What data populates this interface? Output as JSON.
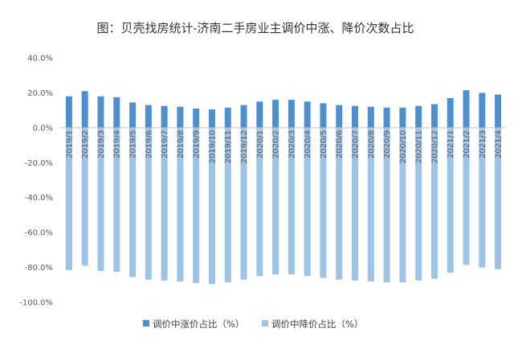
{
  "chart_data": {
    "type": "bar",
    "title": "图：贝壳找房统计-济南二手房业主调价中涨、降价次数占比",
    "categories": [
      "2019/1",
      "2019/2",
      "2019/3",
      "2019/4",
      "2019/5",
      "2019/6",
      "2019/7",
      "2019/8",
      "2019/9",
      "2019/10",
      "2019/11",
      "2019/12",
      "2020/1",
      "2020/2",
      "2020/3",
      "2020/4",
      "2020/5",
      "2020/6",
      "2020/7",
      "2020/8",
      "2020/9",
      "2020/10",
      "2020/11",
      "2020/12",
      "2021/1",
      "2021/2",
      "2021/3",
      "2021/4"
    ],
    "series": [
      {
        "name": "调价中涨价占比（%）",
        "color": "#4e8fd0",
        "values": [
          18.0,
          21.0,
          18.0,
          17.5,
          14.5,
          13.0,
          12.5,
          12.0,
          11.0,
          10.5,
          11.5,
          13.0,
          15.0,
          16.0,
          16.0,
          15.0,
          14.0,
          13.0,
          12.5,
          12.0,
          11.5,
          11.5,
          12.5,
          13.5,
          17.0,
          21.5,
          20.0,
          19.0
        ]
      },
      {
        "name": "调价中降价占比（%）",
        "color": "#9dc3e6",
        "values": [
          -81.5,
          -79.0,
          -82.0,
          -82.5,
          -85.5,
          -87.0,
          -87.5,
          -88.0,
          -89.0,
          -89.5,
          -88.5,
          -87.0,
          -85.0,
          -84.0,
          -84.0,
          -85.0,
          -86.0,
          -87.0,
          -87.5,
          -88.0,
          -88.5,
          -88.5,
          -87.5,
          -86.5,
          -83.0,
          -78.5,
          -80.0,
          -81.0
        ]
      }
    ],
    "yticks": [
      "40.0%",
      "20.0%",
      "0.0%",
      "-20.0%",
      "-40.0%",
      "-60.0%",
      "-80.0%",
      "-100.0%"
    ],
    "ylim": [
      -100,
      40
    ],
    "xlabel": "",
    "ylabel": "",
    "grid": false,
    "legend_position": "bottom"
  }
}
